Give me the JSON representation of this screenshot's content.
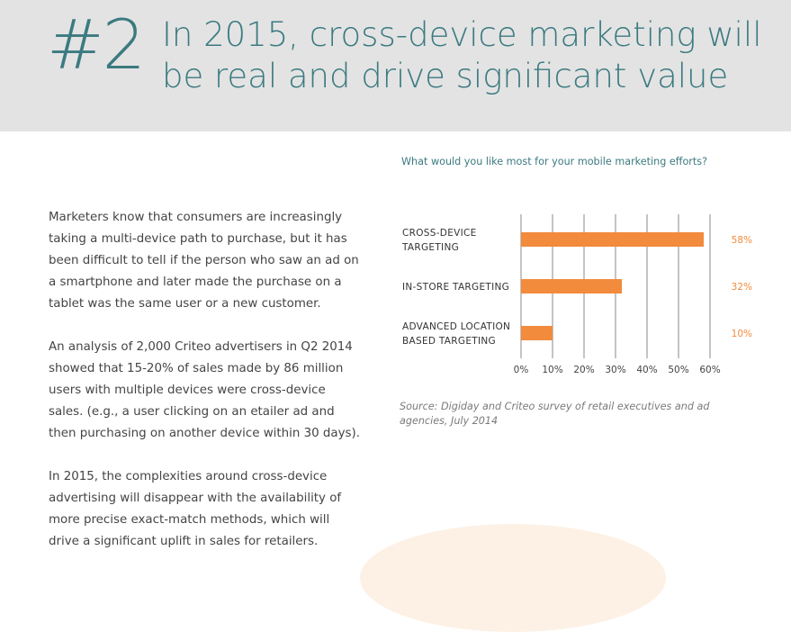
{
  "header": {
    "number": "#2",
    "title_line1": "In 2015, cross-device marketing will",
    "title_line2": "be real and drive significant value"
  },
  "body": {
    "paragraphs": [
      "Marketers know that consumers are increasingly taking a multi-device path to purchase, but it has been difficult to tell if the person who saw an ad on a smartphone and later made the purchase on a tablet was the same user or a new customer.",
      "An analysis of 2,000 Criteo advertisers in Q2 2014 showed that 15-20% of sales made by 86 million users with multiple devices were cross-device sales. (e.g., a user clicking on an etailer ad and then purchasing on another device within 30 days).",
      "In 2015, the complexities around cross-device advertising will disappear with the availability of more precise exact-match methods, which will drive a significant uplift in sales for retailers."
    ]
  },
  "colors": {
    "accent_teal": "#3b7a80",
    "bar_orange": "#f28b3c",
    "header_bg": "#e3e3e3"
  },
  "chart_data": {
    "type": "bar",
    "orientation": "horizontal",
    "title": "What would you like most for your mobile marketing efforts?",
    "categories": [
      [
        "CROSS-DEVICE",
        "TARGETING"
      ],
      [
        "IN-STORE TARGETING"
      ],
      [
        "ADVANCED LOCATION",
        "BASED TARGETING"
      ]
    ],
    "values": [
      58,
      32,
      10
    ],
    "value_labels": [
      "58%",
      "32%",
      "10%"
    ],
    "x_ticks": [
      "0%",
      "10%",
      "20%",
      "30%",
      "40%",
      "50%",
      "60%"
    ],
    "xlim": [
      0,
      60
    ],
    "grid": true,
    "xlabel": "",
    "ylabel": ""
  },
  "source": "Source: Digiday and Criteo survey of retail executives and ad agencies, July 2014"
}
